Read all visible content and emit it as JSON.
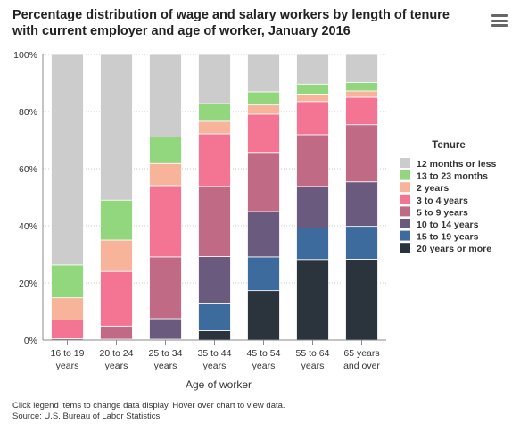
{
  "title": "Percentage distribution of wage and salary workers by length of tenure with current employer and age of worker, January 2016",
  "menu_icon": "hamburger-menu-icon",
  "notes": [
    "Click legend items to change data display. Hover over chart to view data.",
    "Source: U.S. Bureau of Labor Statistics."
  ],
  "chart_data": {
    "type": "bar",
    "stacked": true,
    "title": "Percentage distribution of wage and salary workers by length of tenure with current employer and age of worker, January 2016",
    "xlabel": "Age of worker",
    "ylabel": "",
    "ylim": [
      0,
      100
    ],
    "yticks": [
      "0%",
      "20%",
      "40%",
      "60%",
      "80%",
      "100%"
    ],
    "categories": [
      [
        "16 to 19",
        "years"
      ],
      [
        "20 to 24",
        "years"
      ],
      [
        "25 to 34",
        "years"
      ],
      [
        "35 to 44",
        "years"
      ],
      [
        "45 to 54",
        "years"
      ],
      [
        "55 to 64",
        "years"
      ],
      [
        "65 years",
        "and over"
      ]
    ],
    "legend_title": "Tenure",
    "legend_position": "right",
    "grid": "horizontal dotted",
    "series": [
      {
        "name": "20 years or more",
        "color": "#2b343d",
        "values": [
          0,
          0,
          0,
          3.3,
          17.3,
          28.2,
          28.3
        ]
      },
      {
        "name": "15 to 19 years",
        "color": "#3e6b9e",
        "values": [
          0,
          0,
          0.3,
          9.4,
          11.8,
          11.0,
          11.5
        ]
      },
      {
        "name": "10 to 14 years",
        "color": "#6a5a7e",
        "values": [
          0,
          0.3,
          7.2,
          16.5,
          15.9,
          14.6,
          15.6
        ]
      },
      {
        "name": "5 to 9 years",
        "color": "#c16a86",
        "values": [
          0.5,
          4.6,
          21.6,
          24.6,
          20.7,
          18.1,
          20.0
        ]
      },
      {
        "name": "3 to 4 years",
        "color": "#f47593",
        "values": [
          6.5,
          19.1,
          25.0,
          18.4,
          13.4,
          11.6,
          9.6
        ]
      },
      {
        "name": "2 years",
        "color": "#f8b49b",
        "values": [
          7.8,
          11.0,
          7.7,
          4.4,
          3.2,
          2.6,
          2.2
        ]
      },
      {
        "name": "13 to 23 months",
        "color": "#92d67e",
        "values": [
          11.5,
          14.0,
          9.3,
          6.2,
          4.6,
          3.5,
          3.0
        ]
      },
      {
        "name": "12 months or less",
        "color": "#cccccc",
        "values": [
          73.7,
          51.0,
          28.9,
          17.2,
          13.1,
          10.4,
          9.8
        ]
      }
    ],
    "legend_order": [
      "12 months or less",
      "13 to 23 months",
      "2 years",
      "3 to 4 years",
      "5 to 9 years",
      "10 to 14 years",
      "15 to 19 years",
      "20 years or more"
    ]
  }
}
